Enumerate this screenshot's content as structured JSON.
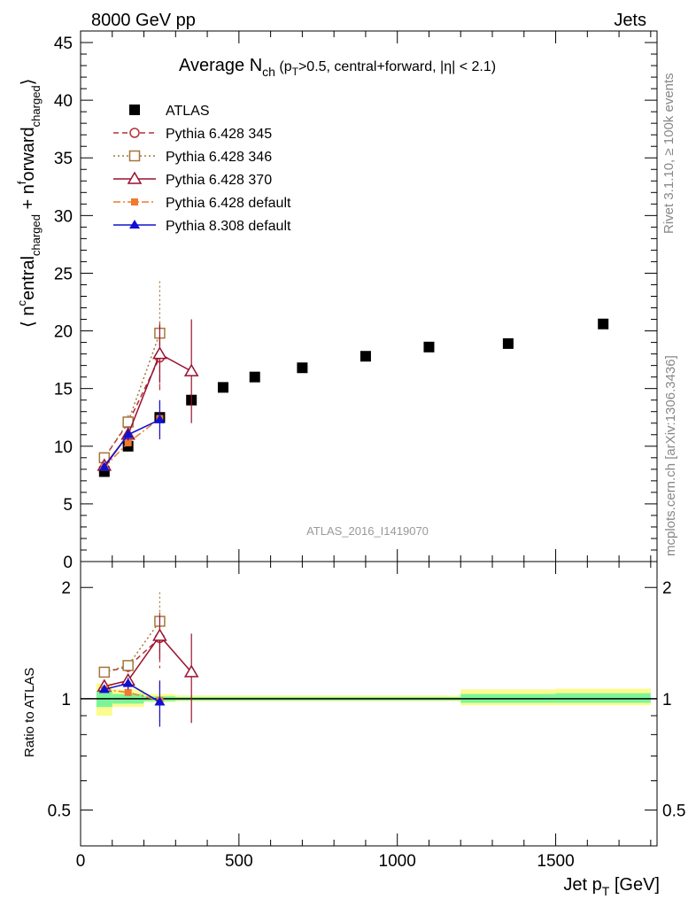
{
  "header": {
    "left": "8000 GeV pp",
    "right": "Jets"
  },
  "side_text": {
    "rivet": "Rivet 3.1.10, ≥ 100k events",
    "mcplots": "mcplots.cern.ch [arXiv:1306.3436]"
  },
  "analysis_label": "ATLAS_2016_I1419070",
  "colors": {
    "atlas": "#000000",
    "p345": "#b5303a",
    "p346": "#a5763a",
    "p370": "#9a1030",
    "p6def": "#f07a32",
    "p8def": "#1010d0",
    "band_inner": "#7cf59a",
    "band_outer": "#fbfb8f"
  },
  "chart_data": [
    {
      "type": "scatter",
      "title": "Average N_ch (p_T>0.5, central+forward, |η| < 2.1)",
      "xlabel": "Jet p_T [GeV]",
      "ylabel": "⟨ n^central_charged + n^forward_charged ⟩",
      "xlim": [
        0,
        1820
      ],
      "ylim": [
        0,
        46
      ],
      "yticks": [
        0,
        5,
        10,
        15,
        20,
        25,
        30,
        35,
        40,
        45
      ],
      "xticks": [
        0,
        500,
        1000,
        1500
      ],
      "legend_position": "top-left",
      "series": [
        {
          "name": "ATLAS",
          "key": "atlas",
          "marker": "square-filled",
          "line": "none",
          "x": [
            75,
            150,
            250,
            350,
            450,
            550,
            700,
            900,
            1100,
            1350,
            1650
          ],
          "y": [
            7.8,
            10.0,
            12.5,
            14.0,
            15.1,
            16.0,
            16.8,
            17.8,
            18.6,
            18.9,
            20.6
          ]
        },
        {
          "name": "Pythia 6.428 345",
          "key": "p345",
          "marker": "circle-open",
          "line": "dashed",
          "x": [
            75,
            150,
            250
          ],
          "y": [
            9.0,
            12.0,
            17.7
          ],
          "err": [
            0.3,
            0.6,
            3.0
          ]
        },
        {
          "name": "Pythia 6.428 346",
          "key": "p346",
          "marker": "square-open",
          "line": "dotted",
          "x": [
            75,
            150,
            250
          ],
          "y": [
            9.0,
            12.1,
            19.8
          ],
          "err": [
            0.3,
            0.6,
            4.5
          ]
        },
        {
          "name": "Pythia 6.428 370",
          "key": "p370",
          "marker": "triangle-open",
          "line": "solid",
          "x": [
            75,
            150,
            250,
            350
          ],
          "y": [
            8.3,
            11.0,
            18.0,
            16.5
          ],
          "err": [
            0.3,
            0.6,
            2.5,
            4.5
          ]
        },
        {
          "name": "Pythia 6.428 default",
          "key": "p6def",
          "marker": "square-filled-small",
          "line": "dashdot",
          "x": [
            75,
            150,
            250
          ],
          "y": [
            8.2,
            10.3,
            12.4
          ],
          "err": [
            0.2,
            0.4,
            1.5
          ]
        },
        {
          "name": "Pythia 8.308 default",
          "key": "p8def",
          "marker": "triangle-filled",
          "line": "solid",
          "x": [
            75,
            150,
            250
          ],
          "y": [
            8.2,
            11.0,
            12.3
          ],
          "err": [
            0.2,
            0.5,
            1.7
          ]
        }
      ]
    },
    {
      "type": "scatter",
      "ylabel": "Ratio to ATLAS",
      "xlabel": "Jet p_T [GeV]",
      "xlim": [
        0,
        1820
      ],
      "ylim": [
        0.4,
        2.35
      ],
      "yscale": "log",
      "yticks": [
        0.5,
        1,
        2
      ],
      "band_inner": [
        {
          "x0": 50,
          "x1": 100,
          "lo": 0.95,
          "hi": 1.05
        },
        {
          "x0": 100,
          "x1": 200,
          "lo": 0.97,
          "hi": 1.03
        },
        {
          "x0": 200,
          "x1": 300,
          "lo": 0.985,
          "hi": 1.015
        },
        {
          "x0": 300,
          "x1": 1200,
          "lo": 0.99,
          "hi": 1.01
        },
        {
          "x0": 1200,
          "x1": 1500,
          "lo": 0.975,
          "hi": 1.03
        },
        {
          "x0": 1500,
          "x1": 1800,
          "lo": 0.975,
          "hi": 1.035
        }
      ],
      "band_outer": [
        {
          "x0": 50,
          "x1": 100,
          "lo": 0.9,
          "hi": 1.1
        },
        {
          "x0": 100,
          "x1": 200,
          "lo": 0.95,
          "hi": 1.06
        },
        {
          "x0": 200,
          "x1": 300,
          "lo": 0.98,
          "hi": 1.03
        },
        {
          "x0": 300,
          "x1": 1200,
          "lo": 0.985,
          "hi": 1.02
        },
        {
          "x0": 1200,
          "x1": 1500,
          "lo": 0.96,
          "hi": 1.06
        },
        {
          "x0": 1500,
          "x1": 1800,
          "lo": 0.96,
          "hi": 1.065
        }
      ],
      "series": [
        {
          "name": "Pythia 6.428 345",
          "key": "p345",
          "marker": "circle-open",
          "line": "dashed",
          "x": [
            75,
            150,
            250
          ],
          "y": [
            1.18,
            1.22,
            1.46
          ],
          "err": [
            0.02,
            0.04,
            0.25
          ]
        },
        {
          "name": "Pythia 6.428 346",
          "key": "p346",
          "marker": "square-open",
          "line": "dotted",
          "x": [
            75,
            150,
            250
          ],
          "y": [
            1.18,
            1.23,
            1.62
          ],
          "err": [
            0.02,
            0.04,
            0.32
          ]
        },
        {
          "name": "Pythia 6.428 370",
          "key": "p370",
          "marker": "triangle-open",
          "line": "solid",
          "x": [
            75,
            150,
            250,
            350
          ],
          "y": [
            1.08,
            1.12,
            1.48,
            1.18
          ],
          "err": [
            0.02,
            0.04,
            0.2,
            0.32
          ]
        },
        {
          "name": "Pythia 6.428 default",
          "key": "p6def",
          "marker": "square-filled-small",
          "line": "dashdot",
          "x": [
            75,
            150,
            250
          ],
          "y": [
            1.06,
            1.04,
            0.99
          ],
          "err": [
            0.02,
            0.03,
            0.12
          ]
        },
        {
          "name": "Pythia 8.308 default",
          "key": "p8def",
          "marker": "triangle-filled",
          "line": "solid",
          "x": [
            75,
            150,
            250
          ],
          "y": [
            1.06,
            1.1,
            0.98
          ],
          "err": [
            0.02,
            0.04,
            0.14
          ]
        }
      ]
    }
  ]
}
